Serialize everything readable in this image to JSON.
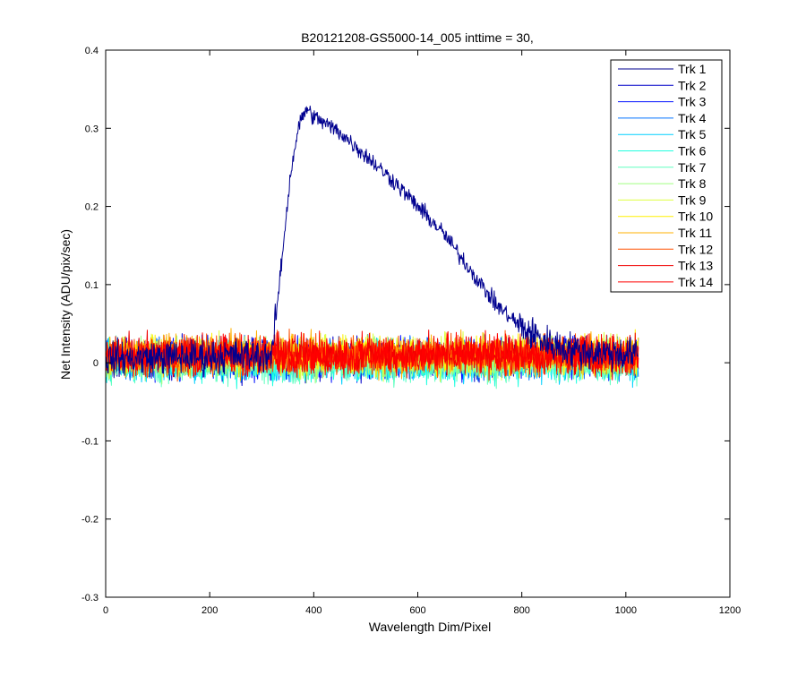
{
  "chart_data": {
    "type": "line",
    "title": "B20121208-GS5000-14_005 inttime = 30,",
    "xlabel": "Wavelength Dim/Pixel",
    "ylabel": "Net Intensity (ADU/pix/sec)",
    "xlim": [
      0,
      1200
    ],
    "ylim": [
      -0.3,
      0.4
    ],
    "x_ticks": [
      0,
      200,
      400,
      600,
      800,
      1000,
      1200
    ],
    "y_ticks": [
      -0.3,
      -0.2,
      -0.1,
      0,
      0.1,
      0.2,
      0.3,
      0.4
    ],
    "x_tick_labels": [
      "0",
      "200",
      "400",
      "600",
      "800",
      "1000",
      "1200"
    ],
    "y_tick_labels": [
      "-0.3",
      "-0.2",
      "-0.1",
      "0",
      "0.1",
      "0.2",
      "0.3",
      "0.4"
    ],
    "grid": false,
    "legend_position": "top-right",
    "x_range_data": [
      1,
      1024
    ],
    "noise_amplitude": 0.02,
    "series": [
      {
        "name": "Trk 1",
        "color": "#00008F",
        "mean": 0.01,
        "signal": [
          [
            1,
            0.005
          ],
          [
            320,
            0.01
          ],
          [
            340,
            0.14
          ],
          [
            355,
            0.24
          ],
          [
            370,
            0.3
          ],
          [
            385,
            0.325
          ],
          [
            400,
            0.315
          ],
          [
            450,
            0.295
          ],
          [
            500,
            0.265
          ],
          [
            550,
            0.235
          ],
          [
            600,
            0.2
          ],
          [
            650,
            0.165
          ],
          [
            700,
            0.12
          ],
          [
            750,
            0.075
          ],
          [
            800,
            0.045
          ],
          [
            850,
            0.025
          ],
          [
            900,
            0.015
          ],
          [
            1024,
            0.01
          ]
        ]
      },
      {
        "name": "Trk 2",
        "color": "#0000C8",
        "mean": 0.005
      },
      {
        "name": "Trk 3",
        "color": "#0010FF",
        "mean": 0.005
      },
      {
        "name": "Trk 4",
        "color": "#0070FF",
        "mean": 0.005
      },
      {
        "name": "Trk 5",
        "color": "#00D0FF",
        "mean": 0.0
      },
      {
        "name": "Trk 6",
        "color": "#20FFDF",
        "mean": 0.0
      },
      {
        "name": "Trk 7",
        "color": "#60FFC0",
        "mean": 0.0
      },
      {
        "name": "Trk 8",
        "color": "#A0FF80",
        "mean": 0.005
      },
      {
        "name": "Trk 9",
        "color": "#DFFF40",
        "mean": 0.01
      },
      {
        "name": "Trk 10",
        "color": "#FFF000",
        "mean": 0.01
      },
      {
        "name": "Trk 11",
        "color": "#FFB000",
        "mean": 0.01
      },
      {
        "name": "Trk 12",
        "color": "#FF5000",
        "mean": 0.01
      },
      {
        "name": "Trk 13",
        "color": "#F00000",
        "mean": 0.01
      },
      {
        "name": "Trk 14",
        "color": "#FF0000",
        "mean": 0.01
      }
    ]
  }
}
